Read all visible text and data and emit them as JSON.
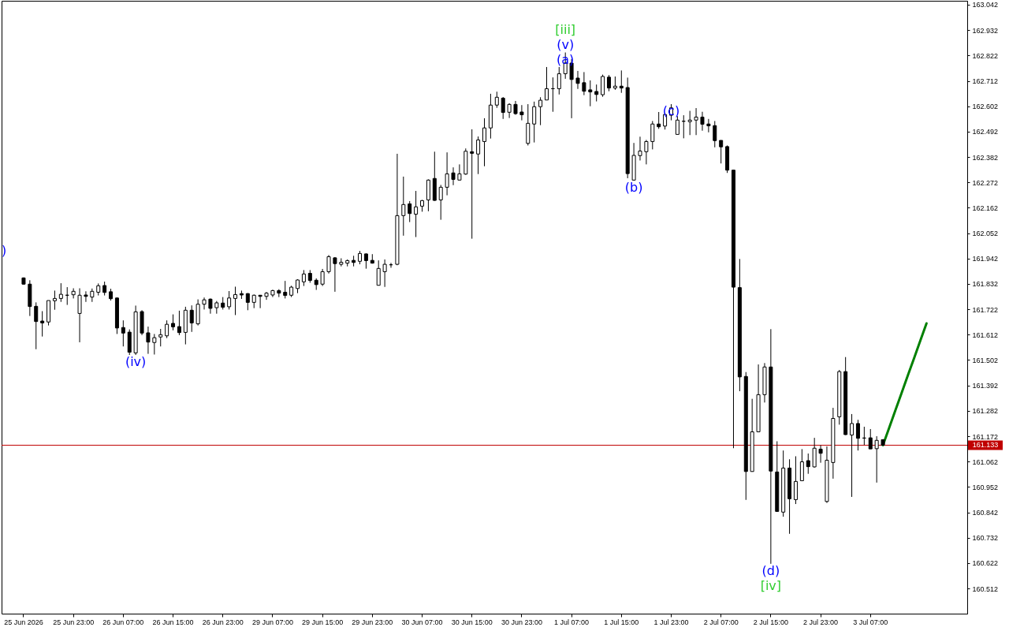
{
  "chart_data": {
    "type": "candlestick",
    "color": "#000000",
    "categories": [
      "25 Jun 2026",
      null,
      null,
      null,
      null,
      null,
      null,
      null,
      "25 Jun 23:00",
      null,
      null,
      null,
      null,
      null,
      null,
      null,
      "26 Jun 07:00",
      null,
      null,
      null,
      null,
      null,
      null,
      null,
      "26 Jun 15:00",
      null,
      null,
      null,
      null,
      null,
      null,
      null,
      "26 Jun 23:00",
      null,
      null,
      null,
      null,
      null,
      null,
      null,
      "29 Jun 07:00",
      null,
      null,
      null,
      null,
      null,
      null,
      null,
      "29 Jun 15:00",
      null,
      null,
      null,
      null,
      null,
      null,
      null,
      "29 Jun 23:00",
      null,
      null,
      null,
      null,
      null,
      null,
      null,
      "30 Jun 07:00",
      null,
      null,
      null,
      null,
      null,
      null,
      null,
      "30 Jun 15:00",
      null,
      null,
      null,
      null,
      null,
      null,
      null,
      "30 Jun 23:00",
      null,
      null,
      null,
      null,
      null,
      null,
      null,
      "1 Jul 07:00",
      null,
      null,
      null,
      null,
      null,
      null,
      null,
      "1 Jul 15:00",
      null,
      null,
      null,
      null,
      null,
      null,
      null,
      "1 Jul 23:00",
      null,
      null,
      null,
      null,
      null,
      null,
      null,
      "2 Jul 07:00",
      null,
      null,
      null,
      null,
      null,
      null,
      null,
      "2 Jul 15:00",
      null,
      null,
      null,
      null,
      null,
      null,
      null,
      "2 Jul 23:00",
      null,
      null,
      null,
      null,
      null,
      null,
      null,
      "3 Jul 07:00",
      null,
      null,
      null,
      null,
      null,
      null,
      null,
      null,
      null,
      null,
      null,
      null
    ],
    "ohlc": [
      [
        161.858,
        161.86,
        161.829,
        161.831
      ],
      [
        161.831,
        161.848,
        161.693,
        161.734
      ],
      [
        161.735,
        161.752,
        161.549,
        161.669
      ],
      [
        161.671,
        161.714,
        161.604,
        161.663
      ],
      [
        161.667,
        161.76,
        161.652,
        161.76
      ],
      [
        161.759,
        161.803,
        161.72,
        161.769
      ],
      [
        161.769,
        161.835,
        161.754,
        161.787
      ],
      [
        161.783,
        161.818,
        161.741,
        161.783
      ],
      [
        161.785,
        161.813,
        161.769,
        161.8
      ],
      [
        161.704,
        161.813,
        161.579,
        161.783
      ],
      [
        161.784,
        161.8,
        161.754,
        161.778
      ],
      [
        161.775,
        161.812,
        161.754,
        161.8
      ],
      [
        161.796,
        161.834,
        161.782,
        161.824
      ],
      [
        161.825,
        161.842,
        161.782,
        161.795
      ],
      [
        161.798,
        161.811,
        161.76,
        161.768
      ],
      [
        161.771,
        161.773,
        161.615,
        161.641
      ],
      [
        161.643,
        161.674,
        161.561,
        161.619
      ],
      [
        161.623,
        161.635,
        161.524,
        161.536
      ],
      [
        161.533,
        161.738,
        161.524,
        161.711
      ],
      [
        161.712,
        161.718,
        161.61,
        161.619
      ],
      [
        161.62,
        161.647,
        161.529,
        161.58
      ],
      [
        161.578,
        161.615,
        161.526,
        161.599
      ],
      [
        161.602,
        161.637,
        161.561,
        161.612
      ],
      [
        161.607,
        161.674,
        161.597,
        161.657
      ],
      [
        161.661,
        161.7,
        161.631,
        161.646
      ],
      [
        161.647,
        161.716,
        161.61,
        161.621
      ],
      [
        161.622,
        161.733,
        161.57,
        161.718
      ],
      [
        161.718,
        161.739,
        161.624,
        161.663
      ],
      [
        161.659,
        161.765,
        161.652,
        161.744
      ],
      [
        161.744,
        161.773,
        161.721,
        161.763
      ],
      [
        161.766,
        161.769,
        161.703,
        161.726
      ],
      [
        161.729,
        161.758,
        161.703,
        161.75
      ],
      [
        161.749,
        161.775,
        161.721,
        161.731
      ],
      [
        161.733,
        161.801,
        161.721,
        161.771
      ],
      [
        161.769,
        161.82,
        161.697,
        161.786
      ],
      [
        161.79,
        161.803,
        161.767,
        161.784
      ],
      [
        161.79,
        161.792,
        161.718,
        161.752
      ],
      [
        161.752,
        161.786,
        161.727,
        161.783
      ],
      [
        161.783,
        161.783,
        161.727,
        161.778
      ],
      [
        161.778,
        161.797,
        161.763,
        161.792
      ],
      [
        161.784,
        161.807,
        161.775,
        161.803
      ],
      [
        161.803,
        161.809,
        161.775,
        161.792
      ],
      [
        161.796,
        161.845,
        161.769,
        161.782
      ],
      [
        161.783,
        161.824,
        161.775,
        161.818
      ],
      [
        161.812,
        161.852,
        161.792,
        161.849
      ],
      [
        161.841,
        161.892,
        161.823,
        161.875
      ],
      [
        161.878,
        161.892,
        161.837,
        161.847
      ],
      [
        161.848,
        161.856,
        161.806,
        161.829
      ],
      [
        161.831,
        161.897,
        161.823,
        161.885
      ],
      [
        161.885,
        161.957,
        161.877,
        161.95
      ],
      [
        161.945,
        161.948,
        161.798,
        161.92
      ],
      [
        161.917,
        161.943,
        161.908,
        161.926
      ],
      [
        161.922,
        161.938,
        161.908,
        161.933
      ],
      [
        161.934,
        161.954,
        161.908,
        161.925
      ],
      [
        161.93,
        161.975,
        161.917,
        161.964
      ],
      [
        161.962,
        161.964,
        161.898,
        161.933
      ],
      [
        161.934,
        161.961,
        161.92,
        161.922
      ],
      [
        161.826,
        161.934,
        161.826,
        161.899
      ],
      [
        161.885,
        161.938,
        161.819,
        161.917
      ],
      [
        161.915,
        161.923,
        161.902,
        161.915
      ],
      [
        161.917,
        162.396,
        161.913,
        162.128
      ],
      [
        162.128,
        162.297,
        162.041,
        162.176
      ],
      [
        162.179,
        162.191,
        162.1,
        162.137
      ],
      [
        162.134,
        162.235,
        162.035,
        162.166
      ],
      [
        162.169,
        162.196,
        162.145,
        162.193
      ],
      [
        162.196,
        162.285,
        162.147,
        162.282
      ],
      [
        162.289,
        162.405,
        162.192,
        162.194
      ],
      [
        162.196,
        162.261,
        162.11,
        162.251
      ],
      [
        162.251,
        162.402,
        162.216,
        162.309
      ],
      [
        162.313,
        162.337,
        162.26,
        162.285
      ],
      [
        162.282,
        162.35,
        162.282,
        162.309
      ],
      [
        162.308,
        162.419,
        162.305,
        162.407
      ],
      [
        162.405,
        162.502,
        162.028,
        162.398
      ],
      [
        162.395,
        162.471,
        162.308,
        162.456
      ],
      [
        162.449,
        162.55,
        162.342,
        162.508
      ],
      [
        162.508,
        162.656,
        162.462,
        162.607
      ],
      [
        162.607,
        162.665,
        162.595,
        162.641
      ],
      [
        162.637,
        162.642,
        162.547,
        162.575
      ],
      [
        162.576,
        162.615,
        162.551,
        162.61
      ],
      [
        162.61,
        162.625,
        162.565,
        162.57
      ],
      [
        162.577,
        162.607,
        162.541,
        162.565
      ],
      [
        162.441,
        162.611,
        162.432,
        162.528
      ],
      [
        162.525,
        162.622,
        162.445,
        162.6
      ],
      [
        162.6,
        162.641,
        162.52,
        162.628
      ],
      [
        162.629,
        162.772,
        162.629,
        162.678
      ],
      [
        162.678,
        162.727,
        162.578,
        162.678
      ],
      [
        162.678,
        162.772,
        162.653,
        162.743
      ],
      [
        162.743,
        162.835,
        162.721,
        162.789
      ],
      [
        162.789,
        162.806,
        162.55,
        162.718
      ],
      [
        162.724,
        162.755,
        162.677,
        162.701
      ],
      [
        162.704,
        162.75,
        162.65,
        162.667
      ],
      [
        162.673,
        162.714,
        162.602,
        162.664
      ],
      [
        162.666,
        162.696,
        162.623,
        162.653
      ],
      [
        162.652,
        162.739,
        162.643,
        162.731
      ],
      [
        162.728,
        162.737,
        162.667,
        162.681
      ],
      [
        162.681,
        162.731,
        162.673,
        162.689
      ],
      [
        162.689,
        162.757,
        162.66,
        162.681
      ],
      [
        162.683,
        162.726,
        162.29,
        162.31
      ],
      [
        162.282,
        162.443,
        162.28,
        162.389
      ],
      [
        162.388,
        162.47,
        162.367,
        162.408
      ],
      [
        162.405,
        162.456,
        162.35,
        162.449
      ],
      [
        162.449,
        162.538,
        162.415,
        162.525
      ],
      [
        162.525,
        162.577,
        162.504,
        162.513
      ],
      [
        162.516,
        162.573,
        162.501,
        162.566
      ],
      [
        162.563,
        162.611,
        162.541,
        162.595
      ],
      [
        162.48,
        162.559,
        162.48,
        162.542
      ],
      [
        162.537,
        162.563,
        162.463,
        162.537
      ],
      [
        162.535,
        162.582,
        162.477,
        162.542
      ],
      [
        162.542,
        162.594,
        162.477,
        162.555
      ],
      [
        162.555,
        162.578,
        162.496,
        162.524
      ],
      [
        162.525,
        162.547,
        162.489,
        162.517
      ],
      [
        162.518,
        162.538,
        162.424,
        162.453
      ],
      [
        162.454,
        162.454,
        162.354,
        162.426
      ],
      [
        162.427,
        162.432,
        162.313,
        162.325
      ],
      [
        162.325,
        162.325,
        161.12,
        161.818
      ],
      [
        161.816,
        161.94,
        161.367,
        161.429
      ],
      [
        161.431,
        161.45,
        160.896,
        161.019
      ],
      [
        161.019,
        161.334,
        161.019,
        161.191
      ],
      [
        161.191,
        161.483,
        161.191,
        161.352
      ],
      [
        161.352,
        161.489,
        161.318,
        161.472
      ],
      [
        161.472,
        161.636,
        160.619,
        161.021
      ],
      [
        161.017,
        161.15,
        160.846,
        160.846
      ],
      [
        160.843,
        161.11,
        160.823,
        161.034
      ],
      [
        161.034,
        161.072,
        160.749,
        160.901
      ],
      [
        160.897,
        161.085,
        160.878,
        160.976
      ],
      [
        160.979,
        161.116,
        160.979,
        161.061
      ],
      [
        161.066,
        161.097,
        161.009,
        161.04
      ],
      [
        161.039,
        161.165,
        161.036,
        161.12
      ],
      [
        161.116,
        161.133,
        161.057,
        161.098
      ],
      [
        160.889,
        161.128,
        160.883,
        161.068
      ],
      [
        161.058,
        161.295,
        160.988,
        161.249
      ],
      [
        161.256,
        161.459,
        161.222,
        161.452
      ],
      [
        161.452,
        161.515,
        161.177,
        161.179
      ],
      [
        161.177,
        161.268,
        160.909,
        161.227
      ],
      [
        161.227,
        161.243,
        161.11,
        161.163
      ],
      [
        161.164,
        161.213,
        161.134,
        161.164
      ],
      [
        161.165,
        161.203,
        161.117,
        161.117
      ],
      [
        161.118,
        161.172,
        160.971,
        161.154
      ],
      [
        161.157,
        161.157,
        161.133,
        161.133
      ],
      null,
      null,
      null,
      null,
      null,
      null,
      null,
      null,
      null,
      null
    ],
    "series": [
      {
        "type": "line",
        "color": "#008000",
        "values": [
          null,
          null,
          null,
          null,
          null,
          null,
          null,
          null,
          null,
          null,
          null,
          null,
          null,
          null,
          null,
          null,
          null,
          null,
          null,
          null,
          null,
          null,
          null,
          null,
          null,
          null,
          null,
          null,
          null,
          null,
          null,
          null,
          null,
          null,
          null,
          null,
          null,
          null,
          null,
          null,
          null,
          null,
          null,
          null,
          null,
          null,
          null,
          null,
          null,
          null,
          null,
          null,
          null,
          null,
          null,
          null,
          null,
          null,
          null,
          null,
          null,
          null,
          null,
          null,
          null,
          null,
          null,
          null,
          null,
          null,
          null,
          null,
          null,
          null,
          null,
          null,
          null,
          null,
          null,
          null,
          null,
          null,
          null,
          null,
          null,
          null,
          null,
          null,
          null,
          null,
          null,
          null,
          null,
          null,
          null,
          null,
          null,
          null,
          null,
          null,
          null,
          null,
          null,
          null,
          null,
          null,
          null,
          null,
          null,
          null,
          null,
          null,
          null,
          null,
          null,
          null,
          null,
          null,
          null,
          null,
          null,
          null,
          null,
          null,
          null,
          null,
          null,
          null,
          null,
          null,
          null,
          null,
          null,
          null,
          null,
          null,
          null,
          null,
          161.133,
          161.208,
          161.284,
          161.359,
          161.435,
          161.51,
          161.586,
          161.661,
          null,
          null,
          null
        ]
      }
    ],
    "ylim": [
      160.403,
      163.059
    ],
    "yticks": [
      160.512,
      160.622,
      160.732,
      160.842,
      160.952,
      161.062,
      161.172,
      161.282,
      161.392,
      161.502,
      161.612,
      161.722,
      161.832,
      161.942,
      162.052,
      162.162,
      162.272,
      162.382,
      162.492,
      162.602,
      162.712,
      162.822,
      162.932,
      163.042
    ],
    "ref_lines": [
      {
        "axis": "y",
        "value": 161.133,
        "label": "161.133",
        "color": "#c00000"
      }
    ],
    "annotations": [
      {
        "text": "[iii]",
        "y": 162.835
      },
      {
        "text": "(v)",
        "y": 162.835
      },
      {
        "text": "(a)",
        "y": 162.835
      },
      {
        "text": "(b)",
        "y": 162.28
      },
      {
        "text": "(c)",
        "y": 162.611
      },
      {
        "text": "(d)",
        "y": 160.619
      },
      {
        "text": "[iv]",
        "y": 160.619
      },
      {
        "text": "(iv)",
        "y": 161.524
      },
      ")"
    ]
  }
}
